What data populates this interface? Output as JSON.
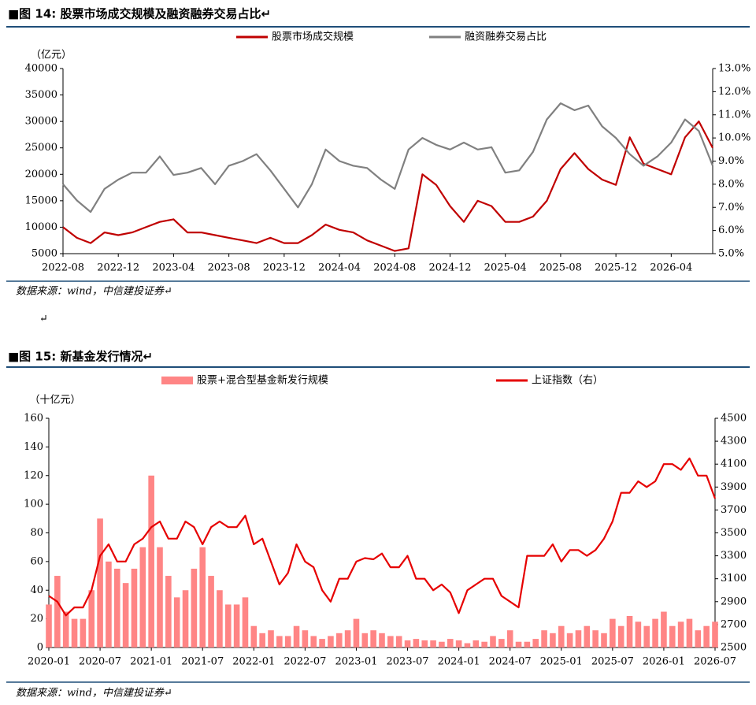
{
  "separator": "↵",
  "chart_data": [
    {
      "type": "line",
      "title": "■图 14: 股票市场成交规模及融资融券交易占比↵",
      "y_label": "（亿元）",
      "source": "数据来源：wind，中信建投证券↵",
      "categories": [
        "2022-08",
        null,
        null,
        null,
        "2022-12",
        null,
        null,
        null,
        "2023-04",
        null,
        null,
        null,
        "2023-08",
        null,
        null,
        null,
        "2023-12",
        null,
        null,
        null,
        "2024-04",
        null,
        null,
        null,
        "2024-08",
        null,
        null,
        null,
        "2024-12",
        null,
        null,
        null,
        "2025-04",
        null,
        null,
        null,
        "2025-08",
        null,
        null,
        null,
        "2025-12",
        null,
        null,
        null,
        "2026-04",
        null,
        null,
        null
      ],
      "series": [
        {
          "name": "股票市场成交规模",
          "color": "#c00000",
          "type": "line",
          "values": [
            10000,
            8000,
            7000,
            9000,
            8500,
            9000,
            10000,
            11000,
            11500,
            9000,
            9000,
            8500,
            8000,
            7500,
            7000,
            8000,
            7000,
            7000,
            8500,
            10500,
            9500,
            9000,
            7500,
            6500,
            5500,
            6000,
            20000,
            18000,
            14000,
            11000,
            15000,
            14000,
            11000,
            11000,
            12000,
            15000,
            21000,
            24000,
            21000,
            19000,
            18000,
            27000,
            22000,
            21000,
            20000,
            27000,
            30000,
            25000
          ]
        },
        {
          "name": "融资融券交易占比",
          "color": "#808080",
          "type": "line",
          "axis": "y2",
          "values": [
            8.0,
            7.3,
            6.8,
            7.8,
            8.2,
            8.5,
            8.5,
            9.2,
            8.4,
            8.5,
            8.7,
            8.0,
            8.8,
            9.0,
            9.3,
            8.6,
            7.8,
            7.0,
            8.0,
            9.5,
            9.0,
            8.8,
            8.7,
            8.2,
            7.8,
            9.5,
            10.0,
            9.7,
            9.5,
            9.8,
            9.5,
            9.6,
            8.5,
            8.6,
            9.4,
            10.8,
            11.5,
            11.2,
            11.4,
            10.5,
            10.0,
            9.3,
            8.8,
            9.2,
            9.8,
            10.8,
            10.3,
            8.8
          ]
        }
      ],
      "ylim": [
        5000,
        40000
      ],
      "yticks": [
        5000,
        10000,
        15000,
        20000,
        25000,
        30000,
        35000,
        40000
      ],
      "y2lim": [
        5.0,
        13.0
      ],
      "y2ticks": [
        {
          "value": 5.0,
          "label": "5.0%"
        },
        {
          "value": 6.0,
          "label": "6.0%"
        },
        {
          "value": 7.0,
          "label": "7.0%"
        },
        {
          "value": 8.0,
          "label": "8.0%"
        },
        {
          "value": 9.0,
          "label": "9.0%"
        },
        {
          "value": 10.0,
          "label": "10.0%"
        },
        {
          "value": 11.0,
          "label": "11.0%"
        },
        {
          "value": 12.0,
          "label": "12.0%"
        },
        {
          "value": 13.0,
          "label": "13.0%"
        }
      ]
    },
    {
      "type": "combo",
      "title": "■图 15: 新基金发行情况↵",
      "y_label": "（十亿元）",
      "source": "数据来源：wind，中信建投证券↵",
      "categories": [
        "2020-01",
        null,
        null,
        null,
        null,
        null,
        "2020-07",
        null,
        null,
        null,
        null,
        null,
        "2021-01",
        null,
        null,
        null,
        null,
        null,
        "2021-07",
        null,
        null,
        null,
        null,
        null,
        "2022-01",
        null,
        null,
        null,
        null,
        null,
        "2022-07",
        null,
        null,
        null,
        null,
        null,
        "2023-01",
        null,
        null,
        null,
        null,
        null,
        "2023-07",
        null,
        null,
        null,
        null,
        null,
        "2024-01",
        null,
        null,
        null,
        null,
        null,
        "2024-07",
        null,
        null,
        null,
        null,
        null,
        "2025-01",
        null,
        null,
        null,
        null,
        null,
        "2025-07",
        null,
        null,
        null,
        null,
        null,
        "2026-01",
        null,
        null,
        null,
        null,
        null,
        "2026-07"
      ],
      "series": [
        {
          "name": "股票+混合型基金新发行规模",
          "color": "#ff8585",
          "type": "bar",
          "values": [
            30,
            50,
            25,
            20,
            20,
            40,
            90,
            60,
            55,
            45,
            55,
            70,
            120,
            70,
            50,
            35,
            40,
            55,
            70,
            50,
            40,
            30,
            30,
            35,
            15,
            10,
            12,
            8,
            8,
            15,
            12,
            8,
            6,
            8,
            10,
            12,
            20,
            10,
            12,
            10,
            8,
            8,
            5,
            6,
            5,
            5,
            4,
            6,
            5,
            3,
            5,
            4,
            8,
            6,
            12,
            4,
            4,
            6,
            12,
            10,
            15,
            10,
            12,
            15,
            12,
            10,
            20,
            15,
            22,
            18,
            15,
            20,
            25,
            15,
            18,
            20,
            12,
            15,
            18
          ]
        },
        {
          "name": "上证指数（右）",
          "color": "#e60000",
          "type": "line",
          "axis": "y2",
          "values": [
            2950,
            2900,
            2780,
            2850,
            2850,
            3000,
            3300,
            3400,
            3250,
            3250,
            3400,
            3450,
            3550,
            3600,
            3450,
            3450,
            3600,
            3550,
            3400,
            3550,
            3600,
            3550,
            3550,
            3650,
            3400,
            3450,
            3250,
            3050,
            3150,
            3400,
            3250,
            3200,
            3000,
            2900,
            3100,
            3100,
            3250,
            3280,
            3270,
            3320,
            3200,
            3200,
            3300,
            3100,
            3100,
            3000,
            3050,
            2980,
            2800,
            3000,
            3050,
            3100,
            3100,
            2950,
            2900,
            2850,
            3300,
            3300,
            3300,
            3400,
            3250,
            3350,
            3350,
            3300,
            3350,
            3450,
            3600,
            3850,
            3850,
            3950,
            3900,
            3950,
            4100,
            4100,
            4050,
            4150,
            4000,
            4000,
            3800
          ]
        }
      ],
      "ylim": [
        0,
        160
      ],
      "yticks": [
        0,
        20,
        40,
        60,
        80,
        100,
        120,
        140,
        160
      ],
      "y2lim": [
        2500,
        4500
      ],
      "y2ticks": [
        2500,
        2700,
        2900,
        3100,
        3300,
        3500,
        3700,
        3900,
        4100,
        4300,
        4500
      ]
    }
  ]
}
